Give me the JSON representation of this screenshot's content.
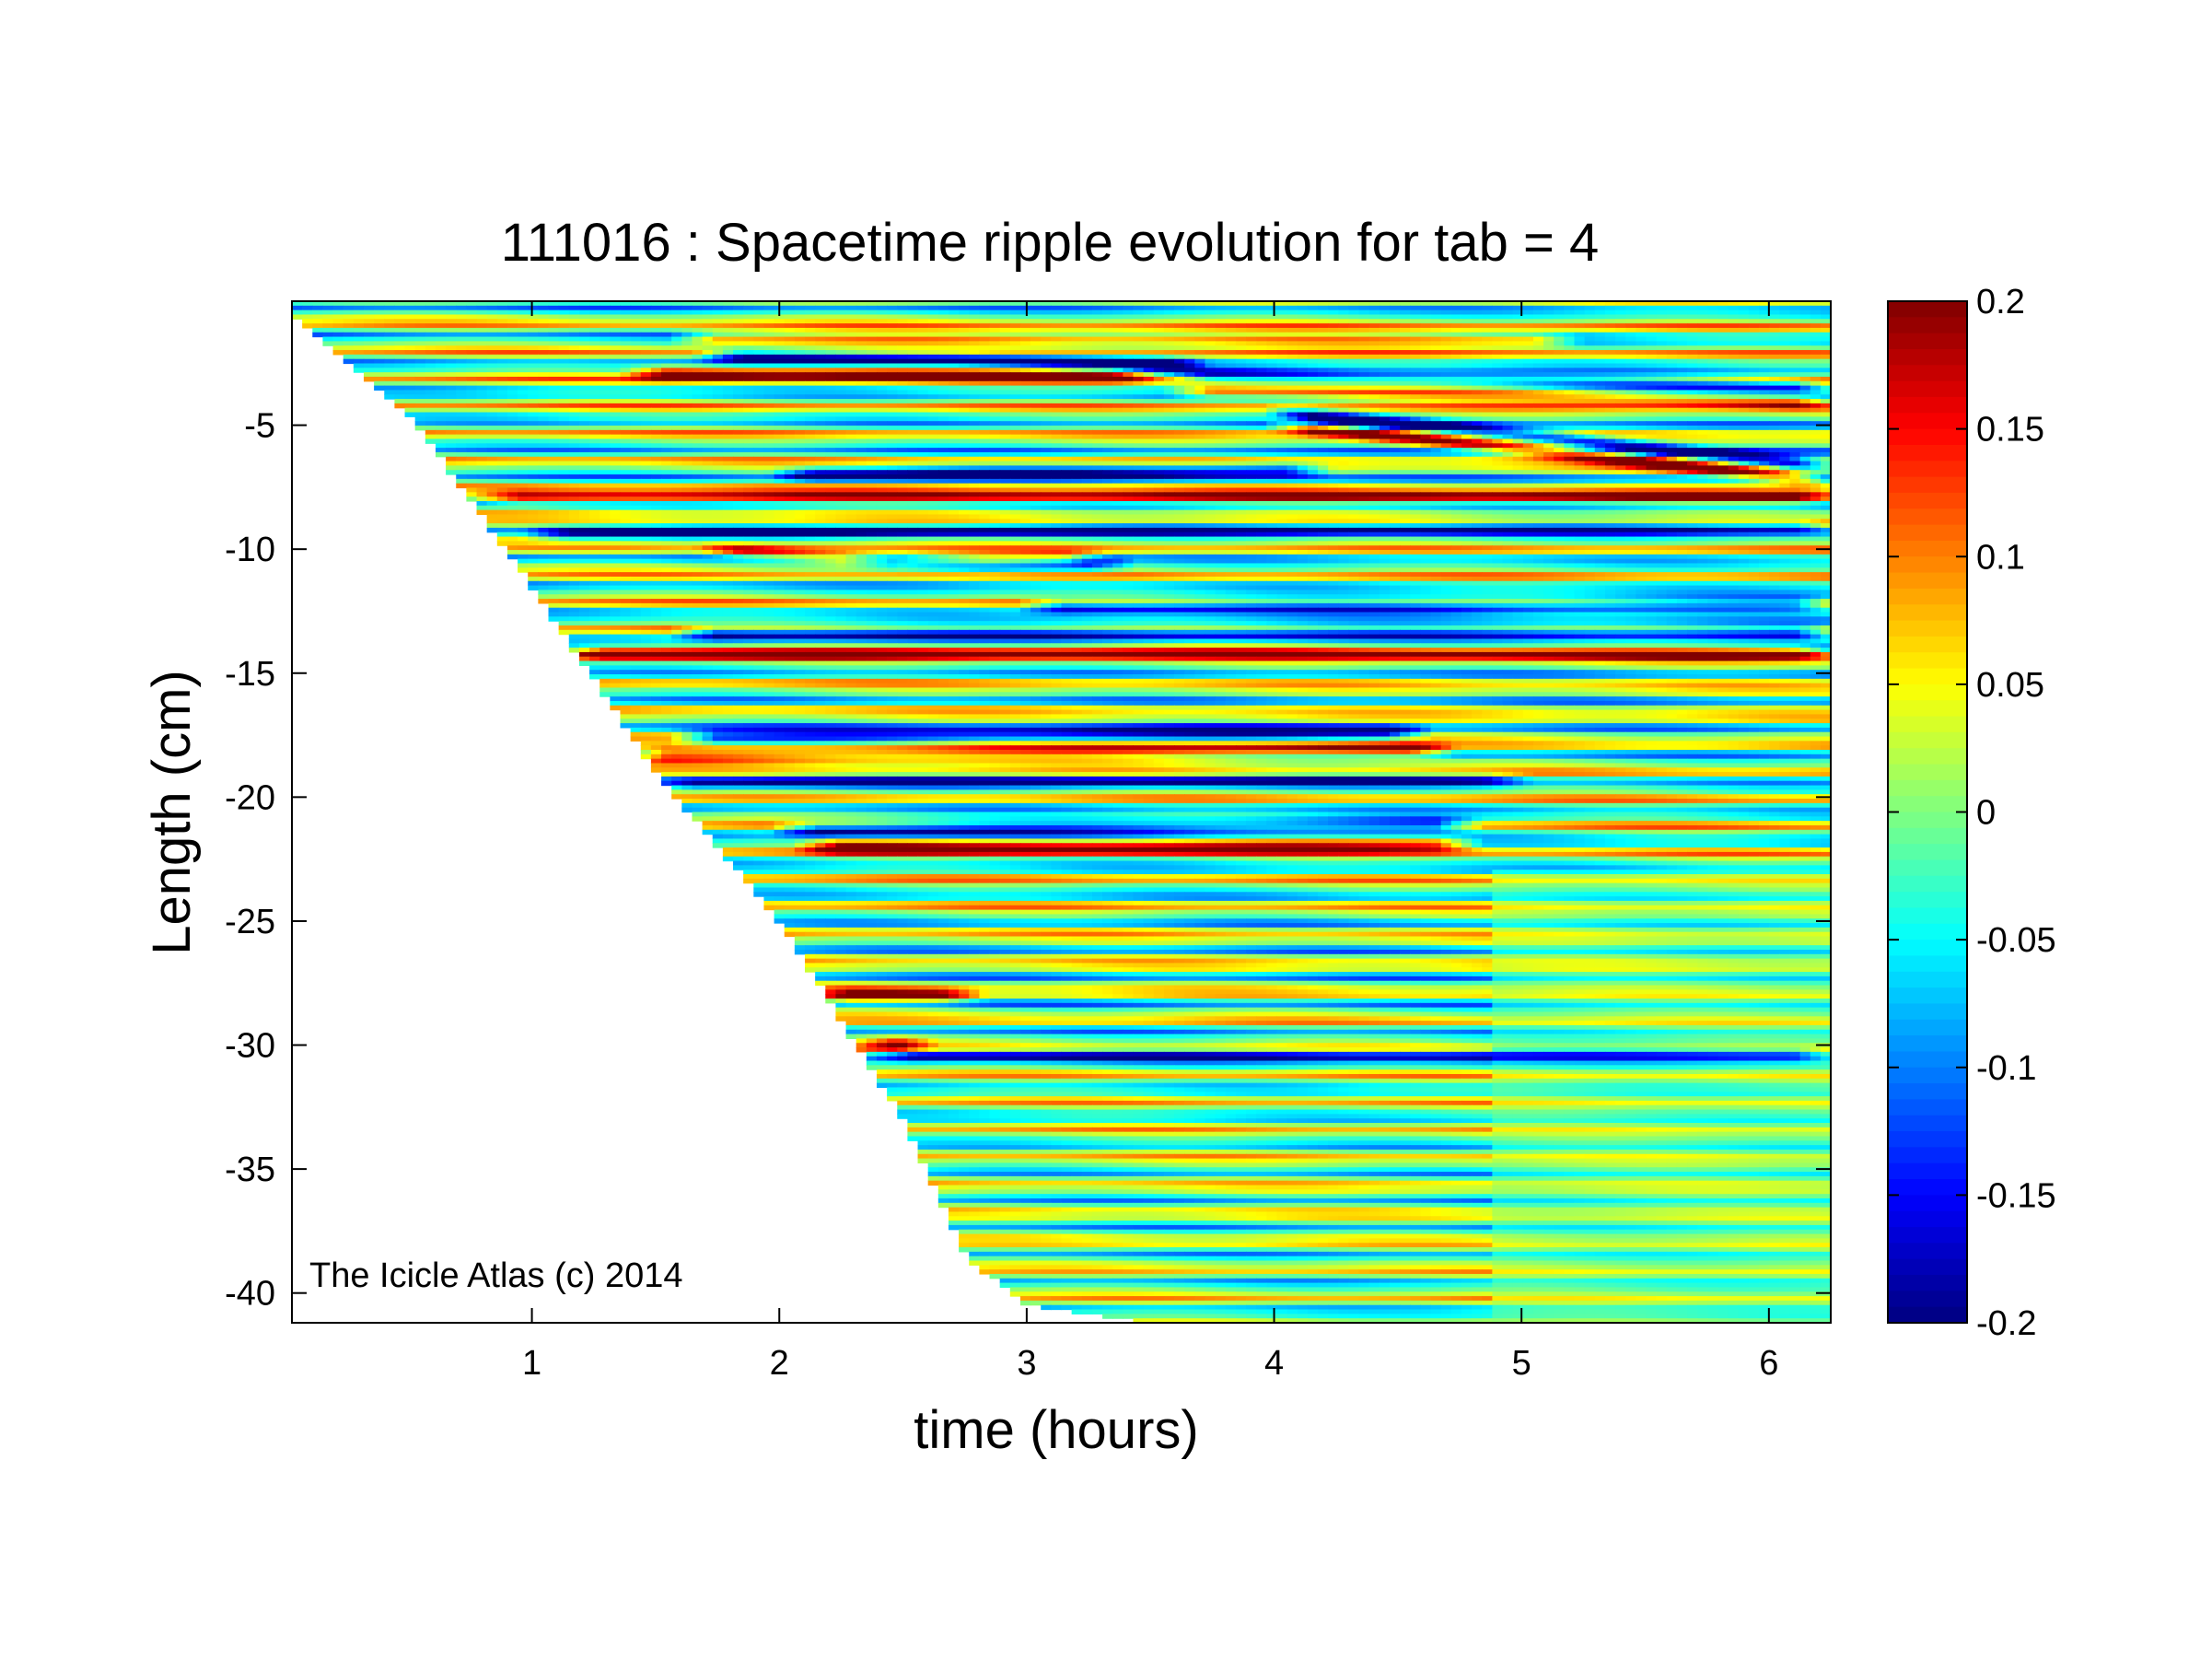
{
  "chart_data": {
    "type": "heatmap",
    "title": "111016 : Spacetime ripple evolution for tab = 4",
    "xlabel": "time (hours)",
    "ylabel": "Length (cm)",
    "xlim": [
      0.03,
      6.25
    ],
    "ylim": [
      -41.2,
      0
    ],
    "x_ticks": [
      1,
      2,
      3,
      4,
      5,
      6
    ],
    "x_tick_labels": [
      "1",
      "2",
      "3",
      "4",
      "5",
      "6"
    ],
    "y_ticks": [
      -5,
      -10,
      -15,
      -20,
      -25,
      -30,
      -35,
      -40
    ],
    "y_tick_labels": [
      "-5",
      "-10",
      "-15",
      "-20",
      "-25",
      "-30",
      "-35",
      "-40"
    ],
    "colormap": "jet",
    "color_range": [
      -0.2,
      0.2
    ],
    "colorbar_ticks": [
      0.2,
      0.15,
      0.1,
      0.05,
      0,
      -0.05,
      -0.1,
      -0.15,
      -0.2
    ],
    "colorbar_tick_labels": [
      "0.2",
      "0.15",
      "0.1",
      "0.05",
      "0",
      "-0.05",
      "-0.1",
      "-0.15",
      "-0.2"
    ],
    "grid": false,
    "growth_front": [
      [
        0.03,
        -0.5
      ],
      [
        0.5,
        -4.5
      ],
      [
        1.0,
        -11.5
      ],
      [
        1.5,
        -19.0
      ],
      [
        2.0,
        -25.0
      ],
      [
        2.5,
        -33.0
      ],
      [
        2.75,
        -38.5
      ],
      [
        3.0,
        -40.5
      ],
      [
        3.5,
        -41.2
      ],
      [
        6.25,
        -41.2
      ]
    ],
    "strong_features": [
      {
        "sign": 1,
        "y": [
          -1.5,
          -1.5,
          -1.6
        ],
        "x_range": [
          1.6,
          5.2
        ],
        "amplitude": 0.15
      },
      {
        "sign": -1,
        "y": [
          -2.2,
          -2.3,
          -2.6
        ],
        "x_range": [
          1.7,
          3.7
        ],
        "amplitude": 0.2
      },
      {
        "sign": 1,
        "y": [
          -2.9,
          -2.9,
          -3.0
        ],
        "x_range": [
          1.4,
          3.5
        ],
        "amplitude": 0.2
      },
      {
        "sign": -1,
        "y": [
          -3.0,
          -3.2,
          -3.5
        ],
        "x_range": [
          3.6,
          6.25
        ],
        "amplitude": 0.17
      },
      {
        "sign": 1,
        "y": [
          -3.6,
          -3.8,
          -4.1
        ],
        "x_range": [
          3.6,
          6.25
        ],
        "amplitude": 0.17
      },
      {
        "sign": -1,
        "y": [
          -4.5,
          -5.5,
          -6.7
        ],
        "x_range": [
          4.0,
          6.25
        ],
        "amplitude": 0.2
      },
      {
        "sign": 1,
        "y": [
          -5.0,
          -6.1,
          -7.3
        ],
        "x_range": [
          4.0,
          6.25
        ],
        "amplitude": 0.18
      },
      {
        "sign": -1,
        "y": [
          -7.0,
          -6.9,
          -6.8
        ],
        "x_range": [
          2.0,
          4.2
        ],
        "amplitude": 0.18
      },
      {
        "sign": 1,
        "y": [
          -7.9,
          -7.9,
          -7.9
        ],
        "x_range": [
          0.8,
          6.25
        ],
        "amplitude": 0.16
      },
      {
        "sign": -1,
        "y": [
          -9.4,
          -9.2,
          -9.1
        ],
        "x_range": [
          1.0,
          6.25
        ],
        "amplitude": 0.15
      },
      {
        "sign": 1,
        "y": [
          -10.0,
          -10.5,
          -10.3
        ],
        "x_range": [
          1.7,
          3.3
        ],
        "amplitude": 0.15
      },
      {
        "sign": -1,
        "y": [
          -10.5,
          -10.7,
          -10.6
        ],
        "x_range": [
          2.3,
          3.4
        ],
        "amplitude": 0.15
      },
      {
        "sign": -1,
        "y": [
          -12.3,
          -12.3,
          -12.2
        ],
        "x_range": [
          3.0,
          6.25
        ],
        "amplitude": 0.17
      },
      {
        "sign": -1,
        "y": [
          -13.4,
          -13.4,
          -13.4
        ],
        "x_range": [
          1.6,
          6.25
        ],
        "amplitude": 0.2
      },
      {
        "sign": 1,
        "y": [
          -14.2,
          -14.1,
          -14.2
        ],
        "x_range": [
          1.15,
          6.25
        ],
        "amplitude": 0.2
      },
      {
        "sign": -1,
        "y": [
          -17.6,
          -17.5,
          -17.4
        ],
        "x_range": [
          1.6,
          4.6
        ],
        "amplitude": 0.2
      },
      {
        "sign": 1,
        "y": [
          -18.3,
          -18.2,
          -18.1
        ],
        "x_range": [
          1.4,
          4.7
        ],
        "amplitude": 0.2
      },
      {
        "sign": -1,
        "y": [
          -19.5,
          -19.4,
          -19.3
        ],
        "x_range": [
          1.5,
          5.0
        ],
        "amplitude": 0.13
      },
      {
        "sign": -1,
        "y": [
          -21.3,
          -21.2,
          -21.1
        ],
        "x_range": [
          2.0,
          4.8
        ],
        "amplitude": 0.2
      },
      {
        "sign": 1,
        "y": [
          -22.0,
          -22.0,
          -21.9
        ],
        "x_range": [
          2.1,
          4.8
        ],
        "amplitude": 0.2
      },
      {
        "sign": 1,
        "y": [
          -28.0,
          -28.0,
          -28.0
        ],
        "x_range": [
          2.15,
          2.8
        ],
        "amplitude": 0.18
      },
      {
        "sign": -1,
        "y": [
          -30.4,
          -30.4,
          -30.4
        ],
        "x_range": [
          2.4,
          6.25
        ],
        "amplitude": 0.14
      },
      {
        "sign": 1,
        "y": [
          -30.0,
          -30.0,
          -30.0
        ],
        "x_range": [
          2.35,
          2.6
        ],
        "amplitude": 0.18
      }
    ],
    "watermark": "The Icicle Atlas (c) 2014"
  }
}
